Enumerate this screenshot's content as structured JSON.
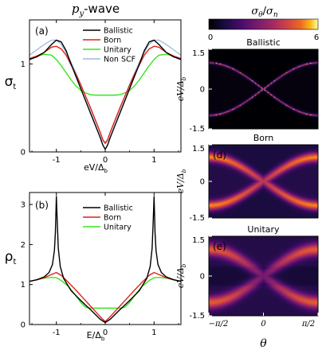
{
  "figure": {
    "title": "p",
    "title_sub": "y",
    "title_suffix": "-wave",
    "colorbar": {
      "label_num": "σ",
      "label_num_sub": "θ",
      "label_sep": "/",
      "label_den": "σ",
      "label_den_sub": "n",
      "min_label": "0",
      "max_label": "6",
      "min": 0,
      "max": 6
    },
    "colors": {
      "ballistic": "#000000",
      "born": "#e0201b",
      "unitary": "#33e61a",
      "nonscf": "#9fb8d6"
    }
  },
  "chart_data": [
    {
      "type": "line",
      "panel": "(a)",
      "ylabel": "σ",
      "ylabel_sub": "t",
      "xlabel": "eV/Δ",
      "xlabel_sub": "b",
      "xlim": [
        -1.55,
        1.55
      ],
      "ylim": [
        0,
        1.5
      ],
      "xticks": [
        "-1",
        "0",
        "1"
      ],
      "yticks": [
        "0",
        "1"
      ],
      "legend_position": "top-right",
      "series": [
        {
          "name": "Ballistic",
          "key": "ballistic",
          "x": [
            -1.55,
            -1.4,
            -1.25,
            -1.1,
            -1.0,
            -0.9,
            -0.8,
            -0.7,
            -0.6,
            -0.5,
            -0.4,
            -0.3,
            -0.2,
            -0.1,
            -0.05,
            0,
            0.05,
            0.1,
            0.2,
            0.3,
            0.4,
            0.5,
            0.6,
            0.7,
            0.8,
            0.9,
            1.0,
            1.1,
            1.25,
            1.4,
            1.55
          ],
          "y": [
            1.05,
            1.08,
            1.13,
            1.22,
            1.27,
            1.25,
            1.15,
            1.0,
            0.86,
            0.72,
            0.58,
            0.44,
            0.3,
            0.16,
            0.08,
            0.03,
            0.08,
            0.16,
            0.3,
            0.44,
            0.58,
            0.72,
            0.86,
            1.0,
            1.15,
            1.25,
            1.27,
            1.22,
            1.13,
            1.08,
            1.05
          ]
        },
        {
          "name": "Born",
          "key": "born",
          "x": [
            -1.55,
            -1.4,
            -1.25,
            -1.1,
            -1.0,
            -0.9,
            -0.8,
            -0.7,
            -0.6,
            -0.5,
            -0.4,
            -0.3,
            -0.2,
            -0.1,
            -0.05,
            0,
            0.05,
            0.1,
            0.2,
            0.3,
            0.4,
            0.5,
            0.6,
            0.7,
            0.8,
            0.9,
            1.0,
            1.1,
            1.25,
            1.4,
            1.55
          ],
          "y": [
            1.06,
            1.09,
            1.13,
            1.19,
            1.2,
            1.17,
            1.1,
            0.99,
            0.88,
            0.76,
            0.63,
            0.5,
            0.36,
            0.22,
            0.14,
            0.1,
            0.14,
            0.22,
            0.36,
            0.5,
            0.63,
            0.76,
            0.88,
            0.99,
            1.1,
            1.17,
            1.2,
            1.19,
            1.13,
            1.09,
            1.06
          ]
        },
        {
          "name": "Unitary",
          "key": "unitary",
          "x": [
            -1.55,
            -1.4,
            -1.25,
            -1.1,
            -1.0,
            -0.9,
            -0.8,
            -0.7,
            -0.6,
            -0.5,
            -0.4,
            -0.3,
            -0.2,
            -0.1,
            0,
            0.1,
            0.2,
            0.3,
            0.4,
            0.5,
            0.6,
            0.7,
            0.8,
            0.9,
            1.0,
            1.1,
            1.25,
            1.4,
            1.55
          ],
          "y": [
            1.06,
            1.09,
            1.11,
            1.1,
            1.05,
            0.98,
            0.9,
            0.82,
            0.75,
            0.7,
            0.67,
            0.65,
            0.645,
            0.645,
            0.645,
            0.645,
            0.645,
            0.65,
            0.67,
            0.7,
            0.75,
            0.82,
            0.9,
            0.98,
            1.05,
            1.1,
            1.11,
            1.09,
            1.06
          ]
        },
        {
          "name": "Non SCF",
          "key": "nonscf",
          "x": [
            -1.55,
            -1.4,
            -1.25,
            -1.1,
            -1.0,
            -0.9,
            -0.8,
            -0.7,
            -0.6,
            -0.5,
            -0.4,
            -0.3,
            -0.2,
            -0.1,
            -0.05,
            0,
            0.05,
            0.1,
            0.2,
            0.3,
            0.4,
            0.5,
            0.6,
            0.7,
            0.8,
            0.9,
            1.0,
            1.1,
            1.25,
            1.4,
            1.55
          ],
          "y": [
            1.1,
            1.16,
            1.22,
            1.27,
            1.27,
            1.22,
            1.13,
            1.02,
            0.9,
            0.77,
            0.63,
            0.49,
            0.35,
            0.21,
            0.13,
            0.09,
            0.13,
            0.21,
            0.35,
            0.49,
            0.63,
            0.77,
            0.9,
            1.02,
            1.13,
            1.22,
            1.27,
            1.27,
            1.22,
            1.16,
            1.1
          ]
        }
      ]
    },
    {
      "type": "line",
      "panel": "(b)",
      "ylabel": "ρ",
      "ylabel_sub": "t",
      "xlabel": "E/Δ",
      "xlabel_sub": "b",
      "xlim": [
        -1.55,
        1.55
      ],
      "ylim": [
        0,
        3.3
      ],
      "xticks": [
        "-1",
        "0",
        "1"
      ],
      "yticks": [
        "0",
        "1",
        "2",
        "3"
      ],
      "legend_position": "top-right",
      "series": [
        {
          "name": "Ballistic",
          "key": "ballistic",
          "x": [
            -1.55,
            -1.4,
            -1.25,
            -1.15,
            -1.08,
            -1.04,
            -1.02,
            -1.0,
            -0.98,
            -0.96,
            -0.92,
            -0.85,
            -0.7,
            -0.5,
            -0.3,
            -0.1,
            0,
            0.1,
            0.3,
            0.5,
            0.7,
            0.85,
            0.92,
            0.96,
            0.98,
            1.0,
            1.02,
            1.04,
            1.08,
            1.15,
            1.25,
            1.4,
            1.55
          ],
          "y": [
            1.08,
            1.12,
            1.19,
            1.3,
            1.5,
            1.85,
            2.3,
            3.2,
            2.5,
            1.9,
            1.45,
            1.15,
            0.85,
            0.6,
            0.37,
            0.13,
            0.05,
            0.13,
            0.37,
            0.6,
            0.85,
            1.15,
            1.45,
            1.9,
            2.5,
            3.2,
            2.3,
            1.85,
            1.5,
            1.3,
            1.19,
            1.12,
            1.08
          ]
        },
        {
          "name": "Born",
          "key": "born",
          "x": [
            -1.55,
            -1.4,
            -1.25,
            -1.1,
            -1.0,
            -0.9,
            -0.75,
            -0.6,
            -0.45,
            -0.3,
            -0.15,
            -0.05,
            0,
            0.05,
            0.15,
            0.3,
            0.45,
            0.6,
            0.75,
            0.9,
            1.0,
            1.1,
            1.25,
            1.4,
            1.55
          ],
          "y": [
            1.08,
            1.12,
            1.17,
            1.25,
            1.3,
            1.23,
            1.05,
            0.86,
            0.66,
            0.46,
            0.26,
            0.13,
            0.08,
            0.13,
            0.26,
            0.46,
            0.66,
            0.86,
            1.05,
            1.23,
            1.3,
            1.25,
            1.17,
            1.12,
            1.08
          ]
        },
        {
          "name": "Unitary",
          "key": "unitary",
          "x": [
            -1.55,
            -1.4,
            -1.25,
            -1.1,
            -1.0,
            -0.9,
            -0.75,
            -0.6,
            -0.5,
            -0.4,
            -0.3,
            -0.2,
            0,
            0.2,
            0.3,
            0.4,
            0.5,
            0.6,
            0.75,
            0.9,
            1.0,
            1.1,
            1.25,
            1.4,
            1.55
          ],
          "y": [
            1.08,
            1.12,
            1.16,
            1.18,
            1.17,
            1.1,
            0.95,
            0.72,
            0.55,
            0.43,
            0.41,
            0.41,
            0.41,
            0.41,
            0.41,
            0.43,
            0.55,
            0.72,
            0.95,
            1.1,
            1.17,
            1.18,
            1.16,
            1.12,
            1.08
          ]
        }
      ]
    },
    {
      "type": "heatmap",
      "panel": "(c)",
      "title": "Ballistic",
      "ylabel": "eV/Δ",
      "ylabel_sub": "b",
      "ylim": [
        -1.5,
        1.5
      ],
      "yticks": [
        "1.5",
        "0",
        "-1.5"
      ],
      "xlim": [
        -1.5708,
        1.5708
      ],
      "sharpness": "sharp",
      "max_value": 6
    },
    {
      "type": "heatmap",
      "panel": "(d)",
      "title": "Born",
      "ylabel": "eV/Δ",
      "ylabel_sub": "b",
      "ylim": [
        -1.5,
        1.5
      ],
      "yticks": [
        "1.5",
        "0",
        "-1.5"
      ],
      "xlim": [
        -1.5708,
        1.5708
      ],
      "sharpness": "diffuse",
      "max_value": 2.5
    },
    {
      "type": "heatmap",
      "panel": "(e)",
      "title": "Unitary",
      "ylabel": "eV/Δ",
      "ylabel_sub": "b",
      "ylim": [
        -1.5,
        1.5
      ],
      "yticks": [
        "1.5",
        "0",
        "-1.5"
      ],
      "xlim": [
        -1.5708,
        1.5708
      ],
      "xticks": [
        "−π/2",
        "0",
        "π/2"
      ],
      "xlabel": "θ",
      "sharpness": "diffuse",
      "max_value": 2.2
    }
  ]
}
